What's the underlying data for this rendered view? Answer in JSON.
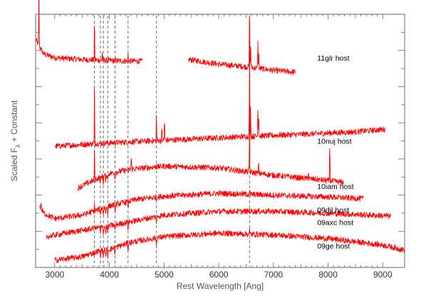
{
  "chart_data": {
    "type": "line",
    "title": "",
    "xlabel": "Rest Wavelength [Ang]",
    "ylabel": "Scaled F",
    "ylabel_subscript": "λ",
    "ylabel_suffix": " + Constant",
    "xlim": [
      2650,
      9400
    ],
    "x_ticks": [
      3000,
      4000,
      5000,
      6000,
      7000,
      8000,
      9000
    ],
    "x_tick_labels": [
      "3000",
      "4000",
      "5000",
      "6000",
      "7000",
      "8000",
      "9000"
    ],
    "ylim": [
      0,
      7
    ],
    "grid": false,
    "legend": "inline labels at right",
    "line_color": "#ff0000",
    "reference_line_color": "#555555",
    "reference_lines_x": [
      3727,
      3835,
      3889,
      3970,
      4102,
      4341,
      4861,
      6563
    ],
    "series": [
      {
        "name": "11glr host",
        "label_x": 7800,
        "offset": 5.8,
        "segments": [
          [
            2650,
            4600
          ],
          [
            5450,
            7400
          ]
        ],
        "continuum": [
          [
            2650,
            6.3
          ],
          [
            2800,
            5.9
          ],
          [
            3000,
            5.8
          ],
          [
            3500,
            5.75
          ],
          [
            4000,
            5.72
          ],
          [
            4600,
            5.7
          ],
          [
            5450,
            5.75
          ],
          [
            6000,
            5.62
          ],
          [
            6500,
            5.55
          ],
          [
            7000,
            5.45
          ],
          [
            7400,
            5.4
          ]
        ],
        "emission": [
          [
            2710,
            1.4
          ],
          [
            3727,
            1.2
          ],
          [
            3870,
            0.25
          ],
          [
            4341,
            0.2
          ],
          [
            6563,
            1.9
          ],
          [
            6583,
            0.6
          ],
          [
            6716,
            0.7
          ],
          [
            6731,
            0.5
          ]
        ]
      },
      {
        "name": "10nuj host",
        "label_x": 7800,
        "offset": 3.5,
        "segments": [
          [
            3000,
            9050
          ]
        ],
        "continuum": [
          [
            3000,
            3.35
          ],
          [
            3700,
            3.42
          ],
          [
            4500,
            3.48
          ],
          [
            5500,
            3.55
          ],
          [
            6500,
            3.62
          ],
          [
            7500,
            3.68
          ],
          [
            8500,
            3.75
          ],
          [
            9050,
            3.82
          ]
        ],
        "emission": [
          [
            3727,
            1.55
          ],
          [
            4861,
            0.7
          ],
          [
            4959,
            0.35
          ],
          [
            5007,
            0.65
          ],
          [
            6563,
            2.4
          ],
          [
            6583,
            0.8
          ],
          [
            6716,
            0.9
          ],
          [
            6731,
            0.55
          ]
        ]
      },
      {
        "name": "10iam host",
        "label_x": 7800,
        "offset": 2.25,
        "segments": [
          [
            3420,
            8280
          ]
        ],
        "continuum": [
          [
            3420,
            2.2
          ],
          [
            3700,
            2.4
          ],
          [
            4000,
            2.6
          ],
          [
            4400,
            2.72
          ],
          [
            5000,
            2.8
          ],
          [
            6000,
            2.75
          ],
          [
            7000,
            2.55
          ],
          [
            8000,
            2.4
          ],
          [
            8280,
            2.35
          ]
        ],
        "emission": [
          [
            3727,
            0.9
          ],
          [
            4341,
            0.2
          ],
          [
            4400,
            0.35
          ],
          [
            4861,
            0.3
          ],
          [
            6563,
            1.4
          ],
          [
            6730,
            0.35
          ],
          [
            7640,
            0.25
          ],
          [
            8030,
            1.1
          ]
        ]
      },
      {
        "name": "09djl host",
        "label_x": 7800,
        "offset": 1.6,
        "segments": [
          [
            2720,
            8650
          ]
        ],
        "continuum": [
          [
            2720,
            1.7
          ],
          [
            2800,
            1.5
          ],
          [
            3000,
            1.35
          ],
          [
            3500,
            1.45
          ],
          [
            4000,
            1.7
          ],
          [
            4500,
            1.88
          ],
          [
            5000,
            1.97
          ],
          [
            6000,
            2.05
          ],
          [
            7000,
            2.0
          ],
          [
            8000,
            1.95
          ],
          [
            8650,
            1.9
          ]
        ],
        "emission": [
          [
            2750,
            0.2
          ],
          [
            3727,
            0.15
          ],
          [
            4861,
            0.12
          ],
          [
            6563,
            0.1
          ]
        ]
      },
      {
        "name": "09axc host",
        "label_x": 7800,
        "offset": 1.25,
        "segments": [
          [
            2850,
            9150
          ]
        ],
        "continuum": [
          [
            2850,
            0.85
          ],
          [
            3200,
            0.95
          ],
          [
            3600,
            1.05
          ],
          [
            4000,
            1.15
          ],
          [
            4500,
            1.3
          ],
          [
            5000,
            1.45
          ],
          [
            6000,
            1.55
          ],
          [
            7000,
            1.55
          ],
          [
            8000,
            1.5
          ],
          [
            9150,
            1.42
          ]
        ],
        "emission": [
          [
            3727,
            0.1
          ],
          [
            6563,
            0.05
          ]
        ]
      },
      {
        "name": "09ge host",
        "label_x": 7800,
        "offset": 0.6,
        "segments": [
          [
            3000,
            9400
          ]
        ],
        "continuum": [
          [
            3000,
            0.2
          ],
          [
            3500,
            0.3
          ],
          [
            3800,
            0.45
          ],
          [
            4000,
            0.5
          ],
          [
            4400,
            0.7
          ],
          [
            4800,
            0.8
          ],
          [
            5000,
            0.85
          ],
          [
            6000,
            0.95
          ],
          [
            7000,
            0.9
          ],
          [
            8000,
            0.8
          ],
          [
            9000,
            0.62
          ],
          [
            9400,
            0.48
          ]
        ],
        "emission": [
          [
            6563,
            0.12
          ]
        ]
      }
    ]
  }
}
